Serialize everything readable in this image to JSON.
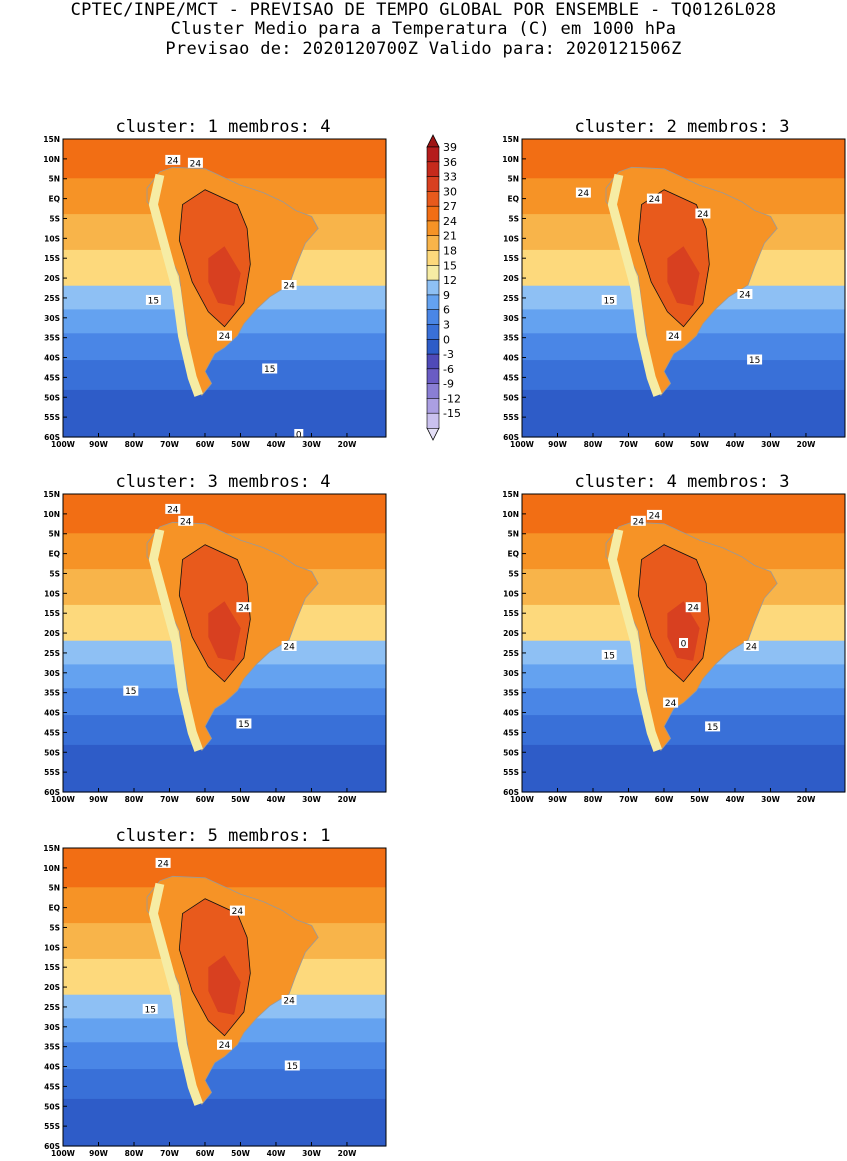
{
  "header": {
    "line1": "CPTEC/INPE/MCT - PREVISAO DE TEMPO GLOBAL POR ENSEMBLE - TQ0126L028",
    "line2": "Cluster Medio para a Temperatura (C) em 1000 hPa",
    "line3": "Previsao de: 2020120700Z   Valido para: 2020121506Z"
  },
  "panels": [
    {
      "title": "cluster: 1   membros: 4",
      "labels": [
        "24",
        "24",
        "24",
        "24",
        "15",
        "15",
        "0"
      ]
    },
    {
      "title": "cluster: 2   membros: 3",
      "labels": [
        "24",
        "24",
        "24",
        "24",
        "24",
        "15",
        "15"
      ]
    },
    {
      "title": "cluster: 3   membros: 4",
      "labels": [
        "24",
        "24",
        "24",
        "24",
        "15",
        "15"
      ]
    },
    {
      "title": "cluster: 4   membros: 3",
      "labels": [
        "24",
        "24",
        "24",
        "24",
        "24",
        "15",
        "15",
        "0"
      ]
    },
    {
      "title": "cluster: 5   membros: 1",
      "labels": [
        "24",
        "24",
        "24",
        "24",
        "15",
        "15"
      ]
    }
  ],
  "axes": {
    "lat_ticks": [
      "15N",
      "10N",
      "5N",
      "EQ",
      "5S",
      "10S",
      "15S",
      "20S",
      "25S",
      "30S",
      "35S",
      "40S",
      "45S",
      "50S",
      "55S",
      "60S"
    ],
    "lon_ticks": [
      "100W",
      "90W",
      "80W",
      "70W",
      "60W",
      "50W",
      "40W",
      "30W",
      "20W"
    ]
  },
  "colorbar": {
    "levels": [
      "39",
      "36",
      "33",
      "30",
      "27",
      "24",
      "21",
      "18",
      "15",
      "12",
      "9",
      "6",
      "3",
      "0",
      "-3",
      "-6",
      "-9",
      "-12",
      "-15"
    ],
    "colors": [
      "#b51c1c",
      "#c62a1c",
      "#d84020",
      "#e85a1c",
      "#f26e14",
      "#f69326",
      "#f8b44a",
      "#fdd97c",
      "#f6eca4",
      "#8ec0f4",
      "#64a2f0",
      "#4a86e6",
      "#3970d8",
      "#2e5cc8",
      "#4f4ab8",
      "#6a5cc4",
      "#8a7ed4",
      "#ab9fe2",
      "#cac1ee"
    ],
    "top_arrow_color": "#9e1414",
    "bottom_arrow_color": "#e4dff6"
  },
  "map_colors": {
    "belt_cold_to_warm": [
      "#2e5cc8",
      "#3970d8",
      "#4a86e6",
      "#64a2f0",
      "#8ec0f4",
      "#fdd97c",
      "#f8b44a",
      "#f69326",
      "#f26e14"
    ],
    "interior_hot": [
      "#e85a1c",
      "#d84020",
      "#c62a1c"
    ],
    "andes_cool": "#f6eca4",
    "land_outline": "#999999",
    "contour": "#111111"
  }
}
